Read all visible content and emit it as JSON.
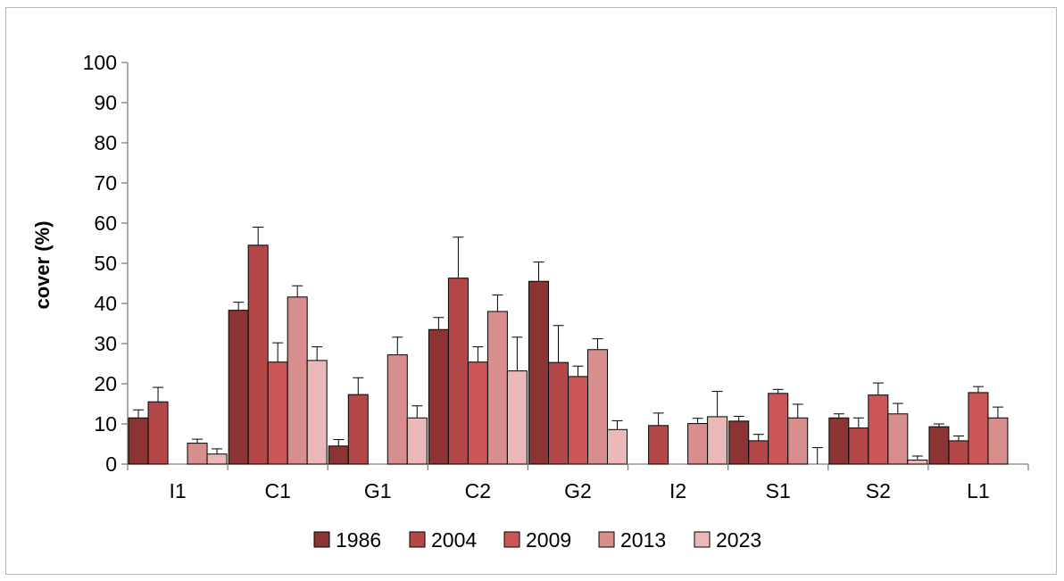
{
  "chart_data": {
    "type": "bar",
    "title": "",
    "xlabel": "",
    "ylabel": "cover (%)",
    "ylim": [
      0,
      100
    ],
    "yticks": [
      0,
      10,
      20,
      30,
      40,
      50,
      60,
      70,
      80,
      90,
      100
    ],
    "grid": false,
    "legend_position": "bottom",
    "error_bars": true,
    "categories": [
      "I1",
      "C1",
      "G1",
      "C2",
      "G2",
      "I2",
      "S1",
      "S2",
      "L1"
    ],
    "series": [
      {
        "name": "1986",
        "color": "#8c3434",
        "values": [
          11.5,
          38.3,
          4.5,
          33.5,
          45.5,
          0,
          10.7,
          11.5,
          9.3
        ],
        "errors": [
          2.0,
          2.0,
          1.6,
          3.0,
          4.8,
          0,
          1.2,
          1.0,
          0.7
        ]
      },
      {
        "name": "2004",
        "color": "#b44848",
        "values": [
          15.5,
          54.5,
          17.3,
          46.3,
          25.3,
          9.6,
          5.8,
          9.0,
          5.8
        ],
        "errors": [
          3.6,
          4.5,
          4.2,
          10.2,
          9.2,
          3.1,
          1.6,
          2.5,
          1.2
        ]
      },
      {
        "name": "2009",
        "color": "#cc5656",
        "values": [
          0,
          25.4,
          0,
          25.4,
          21.8,
          0,
          17.6,
          17.2,
          17.8
        ],
        "errors": [
          0,
          4.8,
          0,
          3.8,
          2.6,
          0,
          1.0,
          3.0,
          1.5
        ]
      },
      {
        "name": "2013",
        "color": "#d98e8e",
        "values": [
          5.2,
          41.6,
          27.2,
          38.0,
          28.5,
          10.1,
          11.5,
          12.5,
          11.5
        ],
        "errors": [
          1.0,
          2.8,
          4.4,
          4.1,
          2.7,
          1.3,
          3.4,
          2.6,
          2.7
        ]
      },
      {
        "name": "2023",
        "color": "#ebb8b8",
        "values": [
          2.5,
          25.8,
          11.5,
          23.2,
          8.6,
          11.8,
          0,
          1.0,
          0
        ],
        "errors": [
          1.3,
          3.4,
          3.0,
          8.4,
          2.2,
          6.3,
          4.1,
          1.0,
          0
        ]
      }
    ]
  }
}
